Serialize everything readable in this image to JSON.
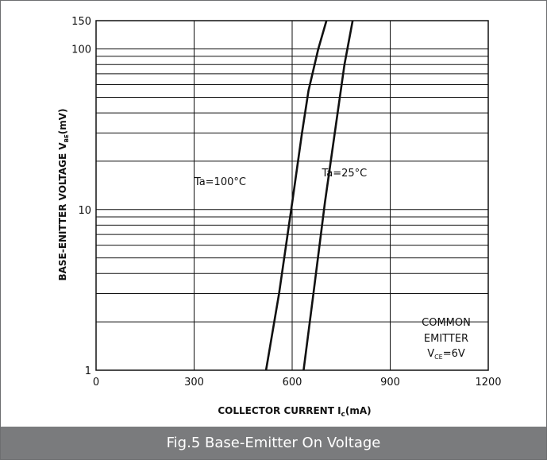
{
  "caption": "Fig.5  Base-Emitter On Voltage",
  "chart_data": {
    "type": "line",
    "x_scale": "linear",
    "y_scale": "log",
    "xlim": [
      0,
      1200
    ],
    "ylim": [
      1,
      150
    ],
    "x_ticks": [
      "0",
      "300",
      "600",
      "900",
      "1200"
    ],
    "y_ticks": [
      "1",
      "10",
      "100",
      "150"
    ],
    "grid": true,
    "xlabel": {
      "main": "COLLECTOR CURRENT  I",
      "sub": "c",
      "unit": "(mA)"
    },
    "ylabel": {
      "main": "BASE-ENITTER VOLTAGE  V",
      "sub": "BE",
      "unit": "(mV)"
    },
    "series": [
      {
        "name": "Ta=100°C",
        "points": [
          [
            520,
            1
          ],
          [
            560,
            3
          ],
          [
            600,
            11
          ],
          [
            630,
            30
          ],
          [
            650,
            55
          ],
          [
            680,
            100
          ],
          [
            705,
            150
          ]
        ]
      },
      {
        "name": "Ta=25°C",
        "points": [
          [
            635,
            1
          ],
          [
            665,
            3
          ],
          [
            700,
            11
          ],
          [
            735,
            35
          ],
          [
            760,
            80
          ],
          [
            785,
            150
          ]
        ]
      }
    ],
    "annotations": [
      {
        "text": "Ta=100°C",
        "x": 380,
        "y": 15
      },
      {
        "text": "Ta=25°C",
        "x": 760,
        "y": 17
      }
    ],
    "condition_note": {
      "line1": "COMMON",
      "line2": "EMITTER",
      "line3_main": "V",
      "line3_sub": "CE",
      "line3_rest": "=6V"
    }
  }
}
